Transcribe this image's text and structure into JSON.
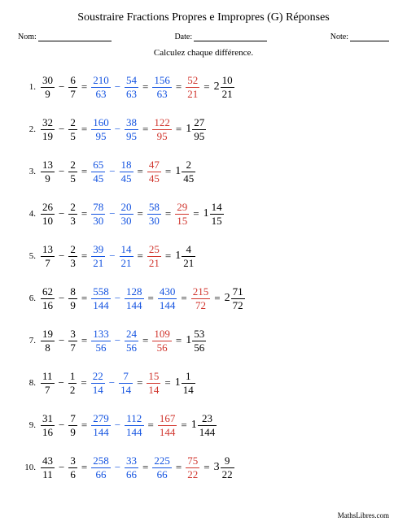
{
  "title": "Soustraire Fractions Propres e Impropres (G) Réponses",
  "header": {
    "name_label": "Nom:",
    "date_label": "Date:",
    "note_label": "Note:"
  },
  "instruction": "Calculez chaque différence.",
  "colors": {
    "blue": "#1252e0",
    "red": "#d0342c",
    "black": "#000000"
  },
  "name_line_width": 90,
  "date_line_width": 90,
  "note_line_width": 48,
  "problems": [
    {
      "n": "1.",
      "a": {
        "num": "30",
        "den": "9"
      },
      "b": {
        "num": "6",
        "den": "7"
      },
      "c": {
        "num": "210",
        "den": "63"
      },
      "d": {
        "num": "54",
        "den": "63"
      },
      "e": {
        "num": "156",
        "den": "63"
      },
      "f": {
        "num": "52",
        "den": "21"
      },
      "f_color": "red",
      "g": {
        "whole": "2",
        "num": "10",
        "den": "21"
      }
    },
    {
      "n": "2.",
      "a": {
        "num": "32",
        "den": "19"
      },
      "b": {
        "num": "2",
        "den": "5"
      },
      "c": {
        "num": "160",
        "den": "95"
      },
      "d": {
        "num": "38",
        "den": "95"
      },
      "e": {
        "num": "122",
        "den": "95"
      },
      "e_color": "red",
      "g": {
        "whole": "1",
        "num": "27",
        "den": "95"
      }
    },
    {
      "n": "3.",
      "a": {
        "num": "13",
        "den": "9"
      },
      "b": {
        "num": "2",
        "den": "5"
      },
      "c": {
        "num": "65",
        "den": "45"
      },
      "d": {
        "num": "18",
        "den": "45"
      },
      "e": {
        "num": "47",
        "den": "45"
      },
      "e_color": "red",
      "g": {
        "whole": "1",
        "num": "2",
        "den": "45"
      }
    },
    {
      "n": "4.",
      "a": {
        "num": "26",
        "den": "10"
      },
      "b": {
        "num": "2",
        "den": "3"
      },
      "c": {
        "num": "78",
        "den": "30"
      },
      "d": {
        "num": "20",
        "den": "30"
      },
      "e": {
        "num": "58",
        "den": "30"
      },
      "f": {
        "num": "29",
        "den": "15"
      },
      "f_color": "red",
      "g": {
        "whole": "1",
        "num": "14",
        "den": "15"
      }
    },
    {
      "n": "5.",
      "a": {
        "num": "13",
        "den": "7"
      },
      "b": {
        "num": "2",
        "den": "3"
      },
      "c": {
        "num": "39",
        "den": "21"
      },
      "d": {
        "num": "14",
        "den": "21"
      },
      "e": {
        "num": "25",
        "den": "21"
      },
      "e_color": "red",
      "g": {
        "whole": "1",
        "num": "4",
        "den": "21"
      }
    },
    {
      "n": "6.",
      "a": {
        "num": "62",
        "den": "16"
      },
      "b": {
        "num": "8",
        "den": "9"
      },
      "c": {
        "num": "558",
        "den": "144"
      },
      "d": {
        "num": "128",
        "den": "144"
      },
      "e": {
        "num": "430",
        "den": "144"
      },
      "f": {
        "num": "215",
        "den": "72"
      },
      "f_color": "red",
      "g": {
        "whole": "2",
        "num": "71",
        "den": "72"
      }
    },
    {
      "n": "7.",
      "a": {
        "num": "19",
        "den": "8"
      },
      "b": {
        "num": "3",
        "den": "7"
      },
      "c": {
        "num": "133",
        "den": "56"
      },
      "d": {
        "num": "24",
        "den": "56"
      },
      "e": {
        "num": "109",
        "den": "56"
      },
      "e_color": "red",
      "g": {
        "whole": "1",
        "num": "53",
        "den": "56"
      }
    },
    {
      "n": "8.",
      "a": {
        "num": "11",
        "den": "7"
      },
      "b": {
        "num": "1",
        "den": "2"
      },
      "c": {
        "num": "22",
        "den": "14"
      },
      "d": {
        "num": "7",
        "den": "14"
      },
      "e": {
        "num": "15",
        "den": "14"
      },
      "e_color": "red",
      "g": {
        "whole": "1",
        "num": "1",
        "den": "14"
      }
    },
    {
      "n": "9.",
      "a": {
        "num": "31",
        "den": "16"
      },
      "b": {
        "num": "7",
        "den": "9"
      },
      "c": {
        "num": "279",
        "den": "144"
      },
      "d": {
        "num": "112",
        "den": "144"
      },
      "e": {
        "num": "167",
        "den": "144"
      },
      "e_color": "red",
      "g": {
        "whole": "1",
        "num": "23",
        "den": "144"
      }
    },
    {
      "n": "10.",
      "a": {
        "num": "43",
        "den": "11"
      },
      "b": {
        "num": "3",
        "den": "6"
      },
      "c": {
        "num": "258",
        "den": "66"
      },
      "d": {
        "num": "33",
        "den": "66"
      },
      "e": {
        "num": "225",
        "den": "66"
      },
      "f": {
        "num": "75",
        "den": "22"
      },
      "f_color": "red",
      "g": {
        "whole": "3",
        "num": "9",
        "den": "22"
      }
    }
  ],
  "footer": "MathsLibres.com"
}
